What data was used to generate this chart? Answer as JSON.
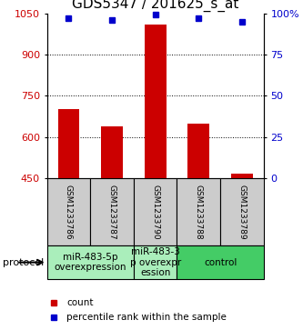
{
  "title": "GDS5347 / 201625_s_at",
  "samples": [
    "GSM1233786",
    "GSM1233787",
    "GSM1233790",
    "GSM1233788",
    "GSM1233789"
  ],
  "counts": [
    700,
    638,
    1010,
    648,
    468
  ],
  "percentiles": [
    97,
    96,
    99,
    97,
    95
  ],
  "ylim_left": [
    450,
    1050
  ],
  "ylim_right": [
    0,
    100
  ],
  "yticks_left": [
    450,
    600,
    750,
    900,
    1050
  ],
  "yticks_right": [
    0,
    25,
    50,
    75,
    100
  ],
  "ytick_labels_right": [
    "0",
    "25",
    "50",
    "75",
    "100%"
  ],
  "bar_color": "#cc0000",
  "dot_color": "#0000cc",
  "bar_width": 0.5,
  "grid_lines": [
    600,
    750,
    900
  ],
  "groups": [
    {
      "start": 0,
      "end": 1,
      "label": "miR-483-5p\noverexpression",
      "color": "#aaeebb"
    },
    {
      "start": 2,
      "end": 2,
      "label": "miR-483-3\np overexpr\nession",
      "color": "#aaeebb"
    },
    {
      "start": 3,
      "end": 4,
      "label": "control",
      "color": "#44cc66"
    }
  ],
  "protocol_label": "protocol",
  "legend_count_label": "count",
  "legend_percentile_label": "percentile rank within the sample",
  "sample_box_color": "#cccccc",
  "title_fontsize": 11,
  "tick_fontsize": 8,
  "sample_fontsize": 6.5,
  "protocol_fontsize": 7.5,
  "legend_fontsize": 7.5
}
